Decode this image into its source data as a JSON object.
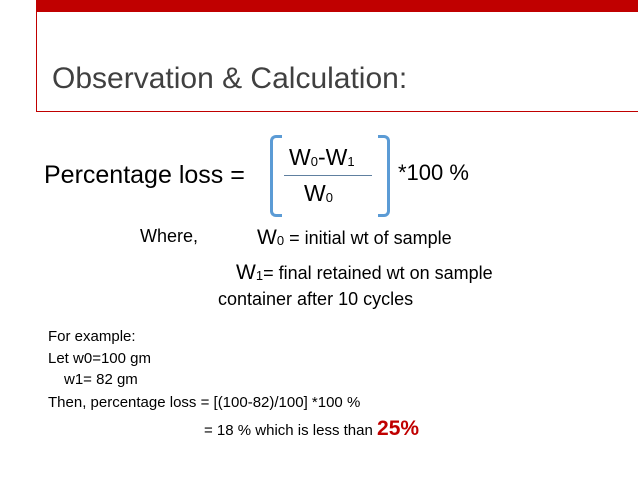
{
  "title": "Observation & Calculation:",
  "formula": {
    "lhs": "Percentage loss =",
    "numerator": {
      "a": "W",
      "a_sub": "0",
      "sep": "-W",
      "b_sub": "1"
    },
    "denominator": {
      "a": "W",
      "a_sub": "0"
    },
    "multiplier": "*100 %"
  },
  "where": {
    "label": "Where,",
    "w0": {
      "sym": "W",
      "sub": "0",
      "text": " = initial wt of sample"
    },
    "w1": {
      "sym": "W",
      "sub": "1",
      "text": "= final retained wt on sample"
    },
    "w1_cont": "container after 10 cycles"
  },
  "example": {
    "line1": "For example:",
    "line2": "Let w0=100 gm",
    "line3": "w1= 82 gm",
    "line4": "Then, percentage loss =   [(100-82)/100] *100 %",
    "line5": "=  18 % which is less than ",
    "line5_highlight": "25%"
  }
}
